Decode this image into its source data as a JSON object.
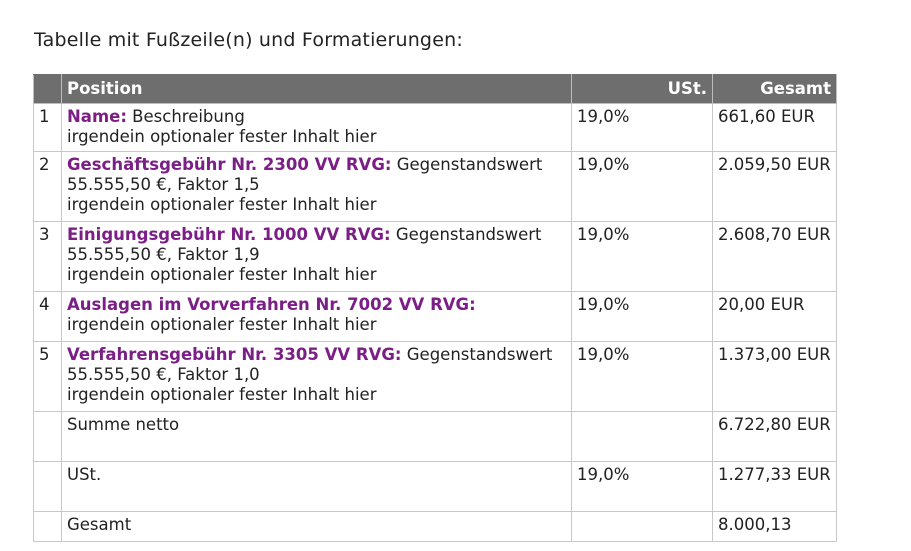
{
  "heading": "Tabelle mit Fußzeile(n) und Formatierungen:",
  "table": {
    "headers": {
      "num": "",
      "position": "Position",
      "ust": "USt.",
      "total": "Gesamt"
    },
    "rows": [
      {
        "num": "1",
        "name": "Name:",
        "description": " Beschreibung",
        "line2": "",
        "extra": "irgendein optionaler fester Inhalt hier",
        "ust": "19,0%",
        "total": "661,60 EUR"
      },
      {
        "num": "2",
        "name": "Geschäftsgebühr Nr. 2300 VV RVG:",
        "description": " Gegenstandswert",
        "line2": "55.555,50 €, Faktor 1,5",
        "extra": "irgendein optionaler fester Inhalt hier",
        "ust": "19,0%",
        "total": "2.059,50 EUR"
      },
      {
        "num": "3",
        "name": "Einigungsgebühr Nr. 1000 VV RVG:",
        "description": " Gegenstandswert",
        "line2": "55.555,50 €, Faktor 1,9",
        "extra": "irgendein optionaler fester Inhalt hier",
        "ust": "19,0%",
        "total": "2.608,70 EUR"
      },
      {
        "num": "4",
        "name": "Auslagen im Vorverfahren Nr. 7002 VV RVG:",
        "description": "",
        "line2": "",
        "extra": "irgendein optionaler fester Inhalt hier",
        "ust": "19,0%",
        "total": "20,00 EUR"
      },
      {
        "num": "5",
        "name": "Verfahrensgebühr Nr. 3305 VV RVG:",
        "description": " Gegenstandswert",
        "line2": "55.555,50 €, Faktor 1,0",
        "extra": "irgendein optionaler fester Inhalt hier",
        "ust": "19,0%",
        "total": "1.373,00 EUR"
      }
    ],
    "footer": [
      {
        "label": "Summe netto",
        "ust": "",
        "total": "6.722,80 EUR"
      },
      {
        "label": "USt.",
        "ust": "19,0%",
        "total": "1.277,33 EUR"
      },
      {
        "label": "Gesamt",
        "ust": "",
        "total": "8.000,13"
      }
    ]
  },
  "colors": {
    "header_bg": "#6e6e6e",
    "position_name": "#7b1f87",
    "border": "#c8c8c8"
  }
}
